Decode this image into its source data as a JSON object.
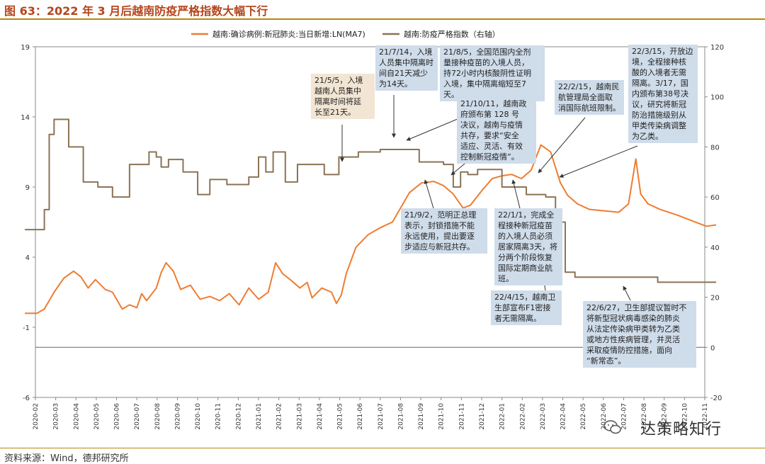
{
  "title": "图 63：2022 年 3 月后越南防疫严格指数大幅下行",
  "source": "资料来源：Wind，德邦研究所",
  "watermark": "达策略知行",
  "chart_data": {
    "type": "line",
    "x_labels": [
      "2020-02",
      "2020-03",
      "2020-04",
      "2020-05",
      "2020-06",
      "2020-07",
      "2020-08",
      "2020-09",
      "2020-10",
      "2020-11",
      "2020-12",
      "2021-01",
      "2021-02",
      "2021-03",
      "2021-04",
      "2021-05",
      "2021-06",
      "2021-07",
      "2021-08",
      "2021-09",
      "2021-10",
      "2021-11",
      "2021-12",
      "2022-01",
      "2022-02",
      "2022-03",
      "2022-04",
      "2022-05",
      "2022-06",
      "2022-07",
      "2022-08",
      "2022-09",
      "2022-10",
      "2022-11"
    ],
    "y_left": {
      "ticks": [
        19,
        14,
        9,
        4,
        -1,
        -6
      ],
      "range": [
        -6,
        19
      ]
    },
    "y_right": {
      "ticks": [
        120,
        100,
        80,
        60,
        40,
        20,
        0,
        -20
      ],
      "range": [
        -20,
        120
      ]
    },
    "grid": false,
    "legend_position": "top",
    "series": [
      {
        "name": "越南:确诊病例:新冠肺炎:当日新增:LN(MA7)",
        "axis": "left",
        "color": "#ed7d31",
        "points": [
          [
            2020.04,
            0
          ],
          [
            2020.09,
            0
          ],
          [
            2020.12,
            0.3
          ],
          [
            2020.16,
            1.5
          ],
          [
            2020.2,
            2.5
          ],
          [
            2020.24,
            3
          ],
          [
            2020.27,
            2.6
          ],
          [
            2020.3,
            1.8
          ],
          [
            2020.33,
            2.4
          ],
          [
            2020.37,
            1.7
          ],
          [
            2020.4,
            1.5
          ],
          [
            2020.44,
            0.3
          ],
          [
            2020.47,
            0.6
          ],
          [
            2020.5,
            0.4
          ],
          [
            2020.52,
            1.4
          ],
          [
            2020.54,
            0.9
          ],
          [
            2020.58,
            1.8
          ],
          [
            2020.6,
            2.9
          ],
          [
            2020.62,
            3.6
          ],
          [
            2020.65,
            3.0
          ],
          [
            2020.68,
            1.7
          ],
          [
            2020.72,
            2.0
          ],
          [
            2020.76,
            1.0
          ],
          [
            2020.8,
            1.2
          ],
          [
            2020.84,
            0.9
          ],
          [
            2020.88,
            1.4
          ],
          [
            2020.92,
            0.6
          ],
          [
            2020.96,
            1.8
          ],
          [
            2021.0,
            1.0
          ],
          [
            2021.04,
            1.5
          ],
          [
            2021.07,
            3.6
          ],
          [
            2021.1,
            2.8
          ],
          [
            2021.13,
            2.4
          ],
          [
            2021.17,
            1.8
          ],
          [
            2021.2,
            2.2
          ],
          [
            2021.22,
            1.1
          ],
          [
            2021.26,
            1.8
          ],
          [
            2021.3,
            1.5
          ],
          [
            2021.32,
            0.7
          ],
          [
            2021.34,
            1.3
          ],
          [
            2021.36,
            2.8
          ],
          [
            2021.4,
            4.7
          ],
          [
            2021.45,
            5.6
          ],
          [
            2021.5,
            6.1
          ],
          [
            2021.55,
            6.5
          ],
          [
            2021.58,
            7.4
          ],
          [
            2021.62,
            8.6
          ],
          [
            2021.67,
            9.3
          ],
          [
            2021.72,
            9.4
          ],
          [
            2021.76,
            9.1
          ],
          [
            2021.8,
            8.5
          ],
          [
            2021.84,
            7.5
          ],
          [
            2021.87,
            7.7
          ],
          [
            2021.92,
            8.8
          ],
          [
            2021.96,
            9.6
          ],
          [
            2022.0,
            9.8
          ],
          [
            2022.04,
            9.9
          ],
          [
            2022.08,
            9.6
          ],
          [
            2022.12,
            10.2
          ],
          [
            2022.16,
            12.0
          ],
          [
            2022.2,
            11.5
          ],
          [
            2022.24,
            9.3
          ],
          [
            2022.27,
            8.4
          ],
          [
            2022.31,
            7.8
          ],
          [
            2022.36,
            7.4
          ],
          [
            2022.42,
            7.3
          ],
          [
            2022.48,
            7.2
          ],
          [
            2022.52,
            7.8
          ],
          [
            2022.55,
            11.0
          ],
          [
            2022.57,
            8.5
          ],
          [
            2022.6,
            7.8
          ],
          [
            2022.65,
            7.4
          ],
          [
            2022.72,
            7.0
          ],
          [
            2022.78,
            6.6
          ],
          [
            2022.84,
            6.2
          ],
          [
            2022.88,
            6.3
          ]
        ]
      },
      {
        "name": "越南:防疫严格指数（右轴）",
        "axis": "right",
        "color": "#8b7355",
        "points": [
          [
            2020.04,
            47
          ],
          [
            2020.1,
            47
          ],
          [
            2020.12,
            55
          ],
          [
            2020.14,
            85
          ],
          [
            2020.16,
            91
          ],
          [
            2020.2,
            91
          ],
          [
            2020.22,
            80
          ],
          [
            2020.26,
            80
          ],
          [
            2020.28,
            66
          ],
          [
            2020.32,
            66
          ],
          [
            2020.34,
            64
          ],
          [
            2020.38,
            64
          ],
          [
            2020.4,
            60
          ],
          [
            2020.45,
            60
          ],
          [
            2020.47,
            73
          ],
          [
            2020.52,
            73
          ],
          [
            2020.55,
            78
          ],
          [
            2020.58,
            76
          ],
          [
            2020.6,
            72
          ],
          [
            2020.63,
            75
          ],
          [
            2020.66,
            75
          ],
          [
            2020.69,
            70
          ],
          [
            2020.72,
            70
          ],
          [
            2020.75,
            61
          ],
          [
            2020.78,
            61
          ],
          [
            2020.8,
            67
          ],
          [
            2020.84,
            67
          ],
          [
            2020.87,
            65
          ],
          [
            2020.92,
            65
          ],
          [
            2020.96,
            68
          ],
          [
            2021.0,
            76
          ],
          [
            2021.03,
            70
          ],
          [
            2021.06,
            78
          ],
          [
            2021.09,
            78
          ],
          [
            2021.11,
            66
          ],
          [
            2021.13,
            66
          ],
          [
            2021.16,
            73
          ],
          [
            2021.24,
            73
          ],
          [
            2021.27,
            69
          ],
          [
            2021.3,
            69
          ],
          [
            2021.33,
            76
          ],
          [
            2021.38,
            76
          ],
          [
            2021.41,
            78
          ],
          [
            2021.46,
            78
          ],
          [
            2021.5,
            79
          ],
          [
            2021.62,
            79
          ],
          [
            2021.66,
            74
          ],
          [
            2021.72,
            74
          ],
          [
            2021.76,
            73
          ],
          [
            2021.8,
            64
          ],
          [
            2021.83,
            70
          ],
          [
            2021.86,
            69
          ],
          [
            2021.9,
            71
          ],
          [
            2021.96,
            71
          ],
          [
            2022.0,
            64
          ],
          [
            2022.05,
            64
          ],
          [
            2022.1,
            61
          ],
          [
            2022.15,
            61
          ],
          [
            2022.18,
            60
          ],
          [
            2022.22,
            50
          ],
          [
            2022.26,
            30
          ],
          [
            2022.3,
            28
          ],
          [
            2022.6,
            28
          ],
          [
            2022.64,
            26
          ],
          [
            2022.88,
            26
          ]
        ]
      }
    ],
    "annotations": [
      {
        "id": "a1",
        "text": "21/5/5，入境\n越南人员集中\n隔离时间将延\n长至21天。",
        "style": "tan"
      },
      {
        "id": "a2",
        "text": "21/7/14，入境\n人员集中隔离时\n间自21天减少\n为14天。",
        "style": "blue"
      },
      {
        "id": "a3",
        "text": "21/8/5，全国范围内全剂\n量接种疫苗的入境人员，\n持72小时内核酸阴性证明\n入境，集中隔离缩短至7天。",
        "style": "blue"
      },
      {
        "id": "a4",
        "text": "21/10/11，越南政\n府颁布第 128 号\n决议，越南与疫情\n共存，要求“安全\n适应、灵活、有效\n控制新冠疫情”。",
        "style": "blue"
      },
      {
        "id": "a5",
        "text": "22/2/15，越南民\n航管理局全面取\n消国际航班限制。",
        "style": "blue"
      },
      {
        "id": "a6",
        "text": "22/3/15，开放边\n境，全程接种核\n酸的入境者无需\n隔离。3/17，国\n内颁布第38号决\n议，研究将新冠\n防治措施级别从\n甲类传染病调整\n为乙类。",
        "style": "blue"
      },
      {
        "id": "a7",
        "text": "21/9/2，范明正总理\n表示，封锁措施不能\n永远使用，提出要逐\n步适应与新冠共存。",
        "style": "blue"
      },
      {
        "id": "a8",
        "text": "22/1/1，完成全\n程接种新冠疫苗\n的入境人员必须\n居家隔离3天，将\n分两个阶段恢复\n国际定期商业航\n班。",
        "style": "blue"
      },
      {
        "id": "a9",
        "text": "22/4/15，越南卫\n生部宣布F1密接\n者无需隔离。",
        "style": "blue"
      },
      {
        "id": "a10",
        "text": "22/6/27，卫生部提议暂时不\n将新型冠状病毒感染的肺炎\n从法定传染病甲类转为乙类\n或地方性疾病管理，并灵活\n采取疫情防控措施，面向\n“新常态”。",
        "style": "blue"
      }
    ]
  }
}
